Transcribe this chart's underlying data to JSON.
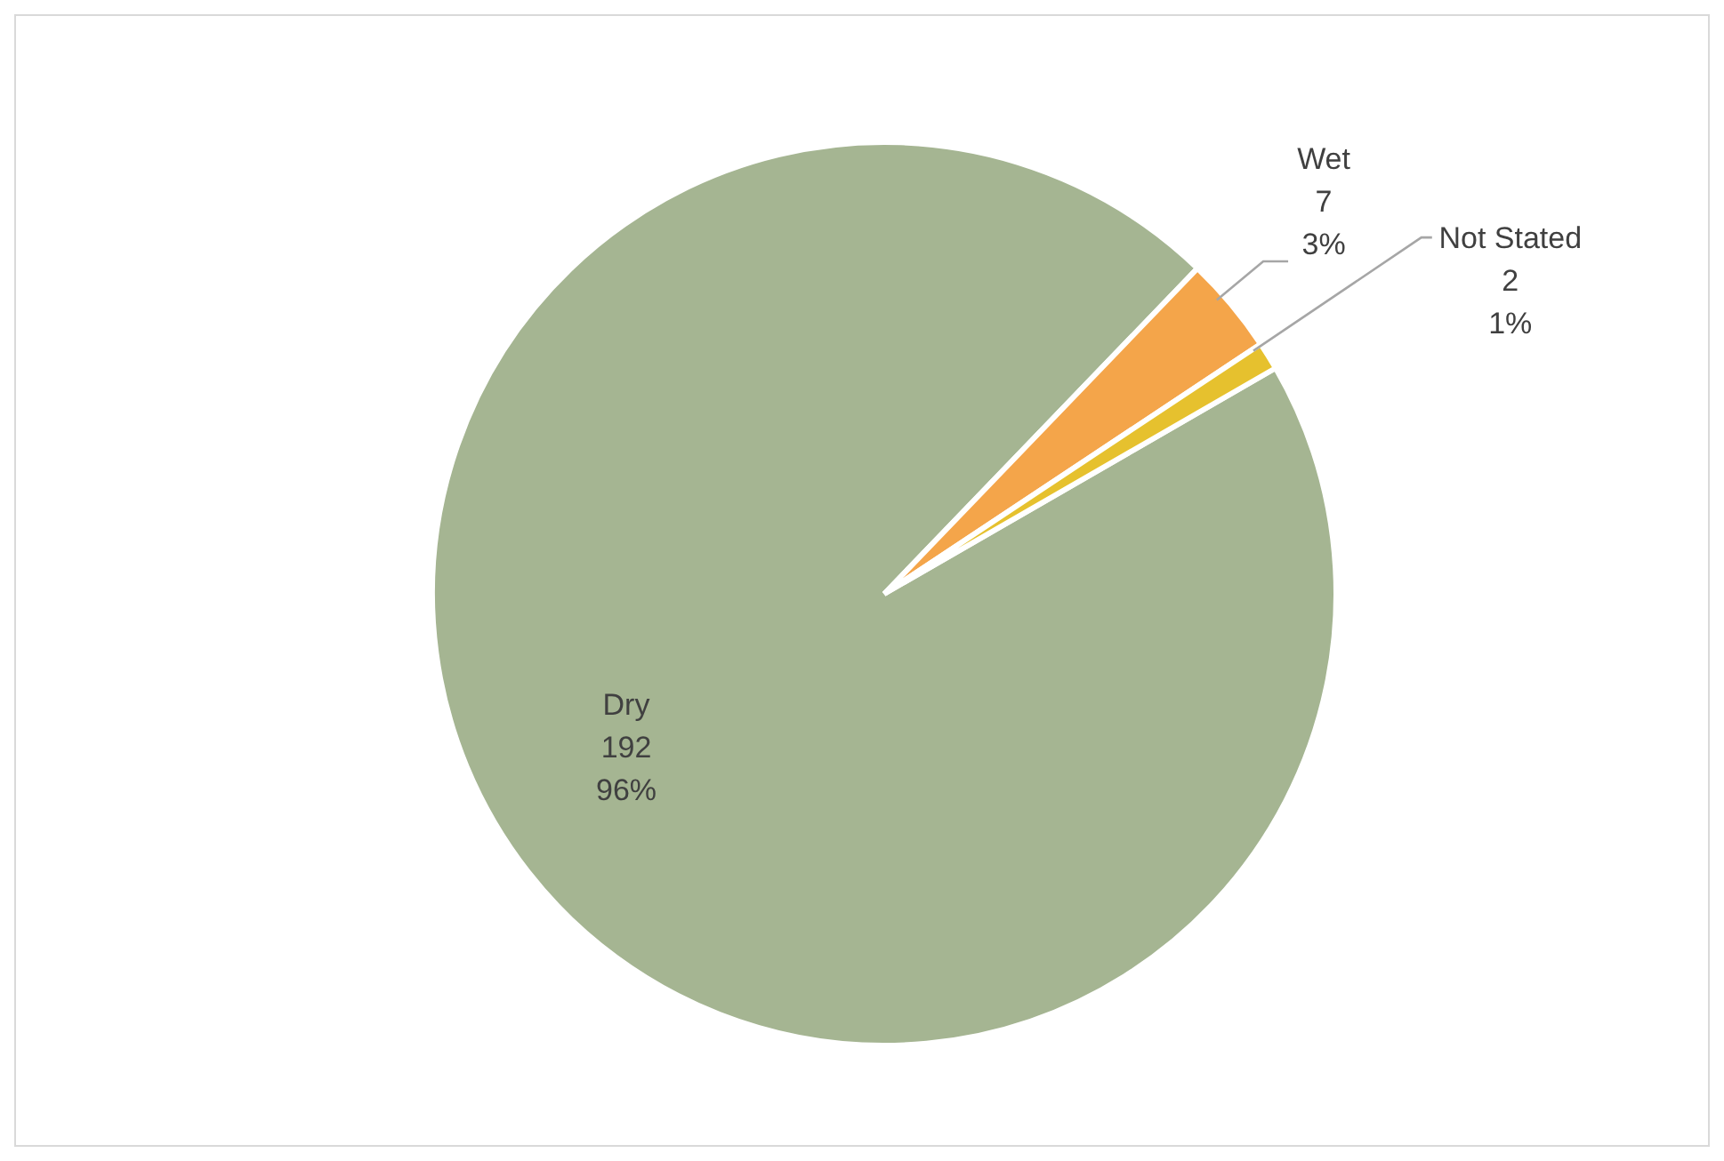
{
  "chart_data": {
    "type": "pie",
    "categories": [
      "Dry",
      "Wet",
      "Not Stated"
    ],
    "values": [
      192,
      7,
      2
    ],
    "colors": [
      "#a5b592",
      "#f4a54a",
      "#e6c12e"
    ],
    "value_labels": [
      "192\n96%",
      "7\n3%",
      "2\n1%"
    ],
    "legend": false
  }
}
